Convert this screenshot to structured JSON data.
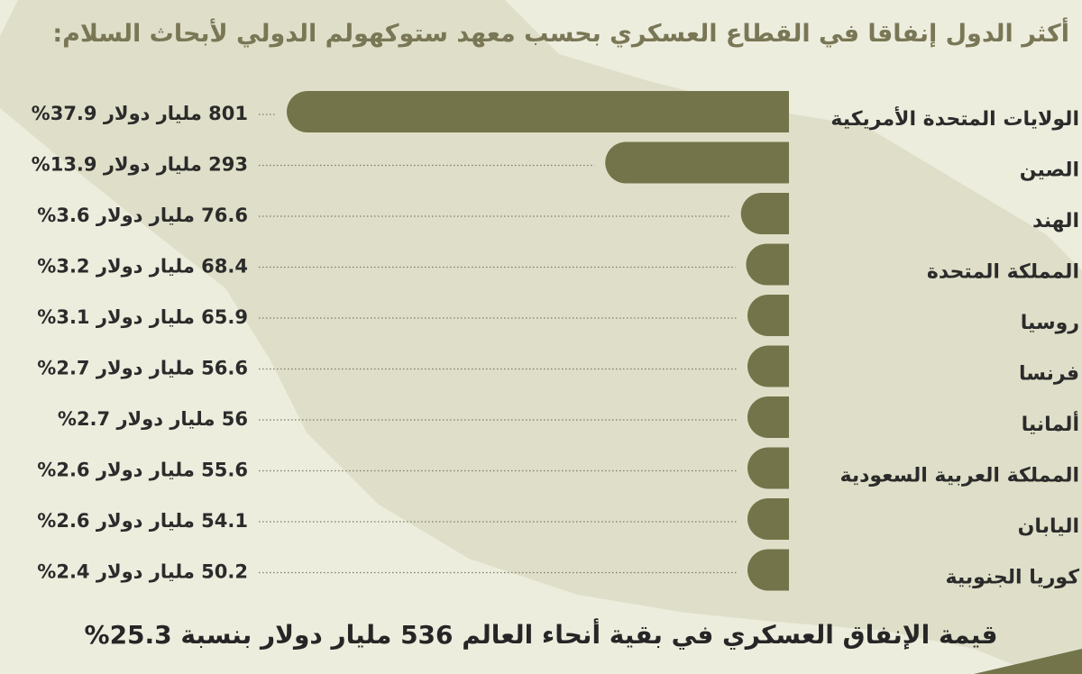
{
  "title": "أكثر الدول إنفاقا في القطاع العسكري بحسب  معهد ستوكهولم الدولي لأبحاث السلام:",
  "footer": "قيمة الإنفاق العسكري في بقية أنحاء العالم 536 مليار دولار بنسبة 25.3%",
  "colors": {
    "bar": "#74744a",
    "background": "#ededde",
    "map_shape": "#dcdcc6",
    "title": "#7a7756",
    "text": "#2f2f2f"
  },
  "chart_data": {
    "type": "bar",
    "orientation": "horizontal",
    "categories": [
      "الولايات المتحدة الأمريكية",
      "الصين",
      "الهند",
      "المملكة المتحدة",
      "روسيا",
      "فرنسا",
      "ألمانيا",
      "المملكة العربية السعودية",
      "اليابان",
      "كوريا الجنوبية"
    ],
    "values": [
      801,
      293,
      76.6,
      68.4,
      65.9,
      56.6,
      56,
      55.6,
      54.1,
      50.2
    ],
    "value_labels": [
      "801 مليار دولار 37.9%",
      "293 مليار دولار 13.9%",
      "76.6 مليار دولار 3.6%",
      "68.4 مليار دولار 3.2%",
      "65.9 مليار دولار 3.1%",
      "56.6 مليار دولار 2.7%",
      "56 مليار دولار 2.7%",
      "55.6 مليار دولار 2.6%",
      "54.1 مليار دولار 2.6%",
      "50.2 مليار دولار 2.4%"
    ],
    "percentages": [
      37.9,
      13.9,
      3.6,
      3.2,
      3.1,
      2.7,
      2.7,
      2.6,
      2.6,
      2.4
    ],
    "unit": "مليار دولار",
    "xlim": [
      0,
      801
    ],
    "grid": false,
    "legend": "none",
    "title": "",
    "xlabel": "",
    "ylabel": ""
  }
}
